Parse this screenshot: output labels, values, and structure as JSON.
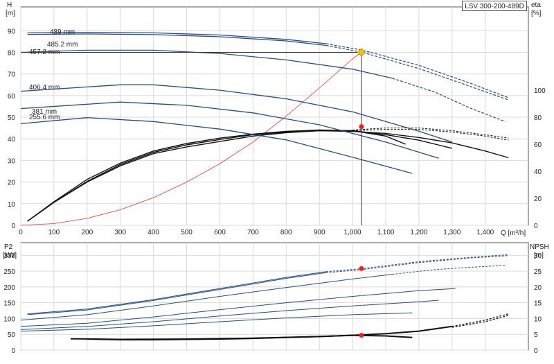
{
  "chart_data": [
    {
      "type": "line",
      "title": "LSV 300-200-489D",
      "x": {
        "label": "Q [m³/h]",
        "ticks": [
          0,
          100,
          200,
          300,
          400,
          500,
          600,
          700,
          800,
          900,
          1000,
          1100,
          1200,
          1300,
          1400
        ],
        "tick_labels": [
          "0",
          "100",
          "200",
          "300",
          "400",
          "500",
          "600",
          "700",
          "800",
          "900",
          "1,000",
          "1,100",
          "1,200",
          "1,300",
          "1,400"
        ],
        "lim": [
          0,
          1530
        ]
      },
      "y_left": {
        "label_line1": "H",
        "label_line2": "[m]",
        "ticks": [
          0,
          10,
          20,
          30,
          40,
          50,
          60,
          70,
          80,
          90
        ],
        "lim": [
          0,
          101
        ]
      },
      "y_right": {
        "label_line1": "eta",
        "label_line2": "[%]",
        "ticks": [
          0,
          20,
          40,
          60,
          80,
          100
        ],
        "lim": [
          0,
          100
        ]
      },
      "grid": true,
      "head_curves": [
        {
          "name": "489 mm",
          "color": "#1f4e8c",
          "x": [
            20,
            200,
            400,
            600,
            800,
            920
          ],
          "y": [
            89,
            89.2,
            89,
            88,
            86,
            84
          ]
        },
        {
          "name": "485.2 mm",
          "color": "#1f4e8c",
          "x": [
            20,
            200,
            400,
            600,
            800,
            920
          ],
          "y": [
            88.3,
            88.5,
            88.2,
            87.2,
            85.3,
            83.2
          ]
        },
        {
          "name": "457.2 mm",
          "color": "#1f4e8c",
          "x": [
            0,
            200,
            400,
            600,
            800,
            1000,
            1120
          ],
          "y": [
            80,
            81,
            81,
            79.5,
            76.5,
            72.2,
            68
          ]
        },
        {
          "name": "406.4 mm",
          "color": "#1f4e8c",
          "x": [
            0,
            300,
            400,
            600,
            800,
            1000,
            1200,
            1300
          ],
          "y": [
            62,
            65,
            65,
            62.5,
            58.5,
            52.5,
            43.5,
            38.5
          ]
        },
        {
          "name": "381 mm",
          "color": "#1f4e8c",
          "x": [
            0,
            300,
            500,
            700,
            900,
            1100,
            1260
          ],
          "y": [
            54,
            57,
            55.5,
            52,
            46.5,
            38.5,
            31
          ]
        },
        {
          "name": "255.6 mm",
          "color": "#1f4e8c",
          "x": [
            0,
            200,
            400,
            600,
            800,
            1000,
            1180
          ],
          "y": [
            47,
            49.8,
            48,
            44.5,
            39.5,
            31.5,
            24
          ]
        }
      ],
      "head_curves_dashed": [
        {
          "color": "#1f4e8c",
          "x": [
            920,
            1030,
            1200,
            1350,
            1470
          ],
          "y": [
            84,
            81,
            74,
            66,
            59
          ]
        },
        {
          "color": "#1f4e8c",
          "x": [
            920,
            1030,
            1200,
            1350,
            1470
          ],
          "y": [
            83.2,
            80,
            72.5,
            64.5,
            58
          ]
        },
        {
          "color": "#1f4e8c",
          "x": [
            1120,
            1250,
            1350,
            1460
          ],
          "y": [
            68,
            61.5,
            54.5,
            48
          ]
        }
      ],
      "efficiency_curves": [
        {
          "x": [
            20,
            100,
            200,
            300,
            400,
            500,
            600,
            700,
            800,
            900,
            1000,
            1100,
            1200,
            1300
          ],
          "y": [
            3,
            17,
            32,
            44,
            53,
            58,
            62,
            66,
            68.5,
            70,
            70,
            67,
            63,
            57
          ]
        },
        {
          "x": [
            20,
            100,
            200,
            300,
            400,
            500,
            600,
            700,
            800,
            900,
            1000,
            1100,
            1200,
            1300,
            1400,
            1470
          ],
          "y": [
            3,
            17,
            32.5,
            45,
            54,
            59.5,
            63.5,
            67,
            69,
            70,
            69.5,
            68,
            65,
            61,
            55,
            50
          ]
        },
        {
          "x": [
            20,
            100,
            200,
            300,
            400,
            500,
            600,
            700,
            800,
            900,
            1000,
            1100,
            1160
          ],
          "y": [
            3,
            17.5,
            34,
            46,
            55,
            60.5,
            64.5,
            67.5,
            69.5,
            70.5,
            70,
            66,
            60
          ]
        }
      ],
      "efficiency_curves_dashed": [
        {
          "x": [
            1000,
            1100,
            1200,
            1300,
            1400,
            1470
          ],
          "y": [
            70.5,
            72,
            72,
            70,
            67,
            64.5
          ]
        },
        {
          "x": [
            1000,
            1100,
            1200,
            1300,
            1400,
            1470
          ],
          "y": [
            70,
            71,
            71,
            69,
            66,
            63
          ]
        }
      ],
      "system_curve": {
        "color": "#ff2a2a",
        "x": [
          0,
          100,
          200,
          300,
          400,
          500,
          600,
          700,
          800,
          900,
          1000,
          1027
        ],
        "y": [
          0,
          0.8,
          3.2,
          7.2,
          12.8,
          20,
          28.5,
          38.5,
          50.5,
          63.5,
          77,
          80
        ]
      },
      "duty_point": {
        "q": 1027,
        "h": 80,
        "eta": 73
      },
      "duty_drop_line": true
    },
    {
      "type": "line",
      "x": {
        "ticks": [
          0,
          100,
          200,
          300,
          400,
          500,
          600,
          700,
          800,
          900,
          1000,
          1100,
          1200,
          1300,
          1400
        ],
        "lim": [
          0,
          1530
        ]
      },
      "y_left": {
        "label_line1": "P2",
        "label_line2": "[kW]",
        "ticks": [
          0,
          50,
          100,
          150,
          200,
          250,
          300
        ],
        "tick_labels": [
          "0",
          "50",
          "100",
          "150",
          "200",
          "250",
          "300"
        ],
        "lim": [
          0,
          340
        ]
      },
      "y_right": {
        "label_line1": "NPSH",
        "label_line2": "[m]",
        "ticks": [
          0,
          5,
          10,
          15,
          20,
          25,
          30
        ],
        "tick_labels": [
          "0",
          "5",
          "10",
          "15",
          "20",
          "25",
          "30"
        ],
        "lim": [
          0,
          34
        ]
      },
      "grid": true,
      "power_curves": [
        {
          "x": [
            20,
            200,
            400,
            600,
            800,
            920
          ],
          "y": [
            115,
            130,
            160,
            195,
            230,
            248
          ]
        },
        {
          "x": [
            20,
            200,
            400,
            600,
            800,
            920
          ],
          "y": [
            112,
            127,
            157,
            192,
            227,
            245
          ]
        },
        {
          "x": [
            0,
            200,
            400,
            600,
            800,
            1000,
            1120
          ],
          "y": [
            95,
            112,
            140,
            170,
            198,
            225,
            240
          ]
        },
        {
          "x": [
            0,
            200,
            400,
            600,
            800,
            1000,
            1200,
            1310
          ],
          "y": [
            75,
            85,
            105,
            128,
            150,
            170,
            188,
            195
          ]
        },
        {
          "x": [
            0,
            200,
            400,
            600,
            800,
            1000,
            1200,
            1260
          ],
          "y": [
            65,
            75,
            90,
            108,
            125,
            140,
            153,
            158
          ]
        },
        {
          "x": [
            0,
            200,
            400,
            600,
            800,
            1000,
            1180
          ],
          "y": [
            60,
            66,
            77,
            90,
            102,
            112,
            118
          ]
        }
      ],
      "power_curves_dashed": [
        {
          "x": [
            920,
            1030,
            1200,
            1350,
            1470
          ],
          "y": [
            248,
            258,
            280,
            293,
            302
          ]
        },
        {
          "x": [
            920,
            1030,
            1200,
            1350,
            1470
          ],
          "y": [
            245,
            255,
            277,
            291,
            299
          ]
        },
        {
          "x": [
            1120,
            1250,
            1350,
            1460
          ],
          "y": [
            240,
            255,
            262,
            268
          ]
        }
      ],
      "npsh_curves": [
        {
          "x": [
            200,
            300,
            400,
            500,
            600,
            700,
            800,
            900,
            1000,
            1100,
            1200,
            1300
          ],
          "y": [
            3.5,
            3.3,
            3.3,
            3.4,
            3.5,
            3.7,
            4.0,
            4.3,
            4.7,
            5.2,
            6.0,
            7.5
          ]
        },
        {
          "x": [
            150,
            300,
            500,
            700,
            900,
            1000,
            1100,
            1180
          ],
          "y": [
            3.6,
            3.4,
            3.5,
            3.8,
            4.3,
            4.7,
            4.5,
            4.0
          ]
        }
      ],
      "npsh_curves_dashed": [
        {
          "x": [
            1300,
            1400,
            1470
          ],
          "y": [
            7.5,
            9.5,
            11.5
          ]
        },
        {
          "x": [
            1300,
            1400,
            1470
          ],
          "y": [
            7.2,
            9.0,
            11.0
          ]
        }
      ],
      "duty_points": [
        {
          "q": 1027,
          "p2": 258
        },
        {
          "q": 1027,
          "npsh": 4.7
        }
      ]
    }
  ]
}
